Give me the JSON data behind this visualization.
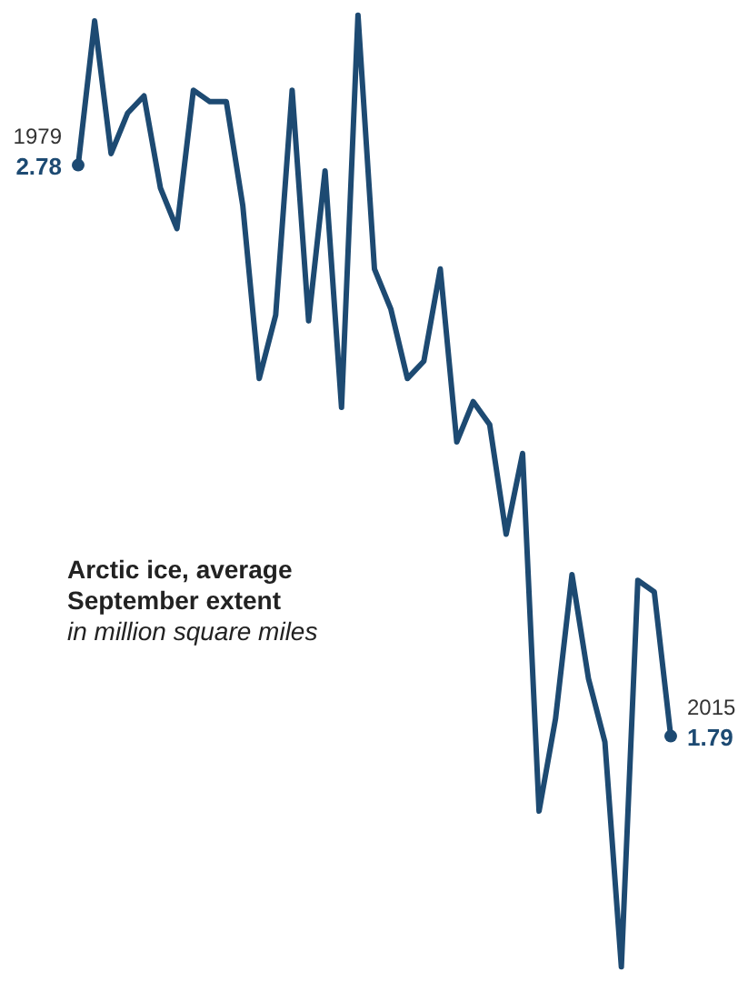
{
  "chart_data": {
    "type": "line",
    "title": "Arctic ice, average September extent",
    "subtitle": "in million square miles",
    "annotations": [
      "1979",
      "2015"
    ],
    "categories": [
      null,
      null,
      null,
      null,
      null,
      null,
      null,
      null,
      null,
      null,
      null,
      null,
      null,
      null,
      null,
      null,
      null,
      null,
      null,
      null,
      null,
      null,
      null,
      null,
      null,
      null,
      null,
      null,
      null,
      null,
      null,
      null,
      null,
      null,
      null,
      null,
      null
    ],
    "series": [
      {
        "color": "#1d4a72",
        "values": [
          2.78,
          3.03,
          2.8,
          2.87,
          2.9,
          2.74,
          2.67,
          2.91,
          2.89,
          2.89,
          2.71,
          2.41,
          2.52,
          2.91,
          2.51,
          2.77,
          2.36,
          3.04,
          2.6,
          2.53,
          2.41,
          2.44,
          2.6,
          2.3,
          2.37,
          2.33,
          2.14,
          2.28,
          1.66,
          1.82,
          2.07,
          1.89,
          1.78,
          1.39,
          2.06,
          2.04,
          1.79
        ],
        "value_labels": [
          "2.78",
          null,
          null,
          null,
          null,
          null,
          null,
          null,
          null,
          null,
          null,
          null,
          null,
          null,
          null,
          null,
          null,
          null,
          null,
          null,
          null,
          null,
          null,
          null,
          null,
          null,
          null,
          null,
          null,
          null,
          null,
          null,
          null,
          null,
          null,
          null,
          "1.79"
        ]
      }
    ],
    "ylim": [
      1.37,
      3.06
    ],
    "line_style": "solid"
  }
}
